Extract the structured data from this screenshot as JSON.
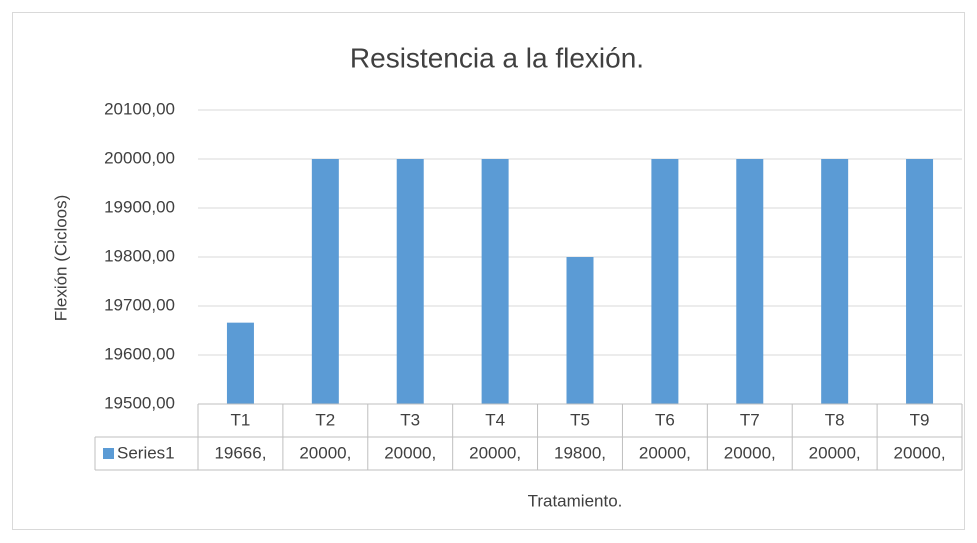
{
  "chart_data": {
    "type": "bar",
    "title": "Resistencia a la flexión.",
    "x_label": "Tratamiento.",
    "y_label": "Flexión (Cicloos)",
    "categories": [
      "T1",
      "T2",
      "T3",
      "T4",
      "T5",
      "T6",
      "T7",
      "T8",
      "T9"
    ],
    "series": [
      {
        "name": "Series1",
        "color": "#5b9bd5",
        "values": [
          19666,
          20000,
          20000,
          20000,
          19800,
          20000,
          20000,
          20000,
          20000
        ],
        "value_labels": [
          "19666,",
          "20000,",
          "20000,",
          "20000,",
          "19800,",
          "20000,",
          "20000,",
          "20000,",
          "20000,"
        ]
      }
    ],
    "ylim": [
      19500,
      20100
    ],
    "yticks": [
      {
        "value": 19500,
        "label": "19500,00"
      },
      {
        "value": 19600,
        "label": "19600,00"
      },
      {
        "value": 19700,
        "label": "19700,00"
      },
      {
        "value": 19800,
        "label": "19800,00"
      },
      {
        "value": 19900,
        "label": "19900,00"
      },
      {
        "value": 20000,
        "label": "20000,00"
      },
      {
        "value": 20100,
        "label": "20100,00"
      }
    ],
    "grid": true
  }
}
